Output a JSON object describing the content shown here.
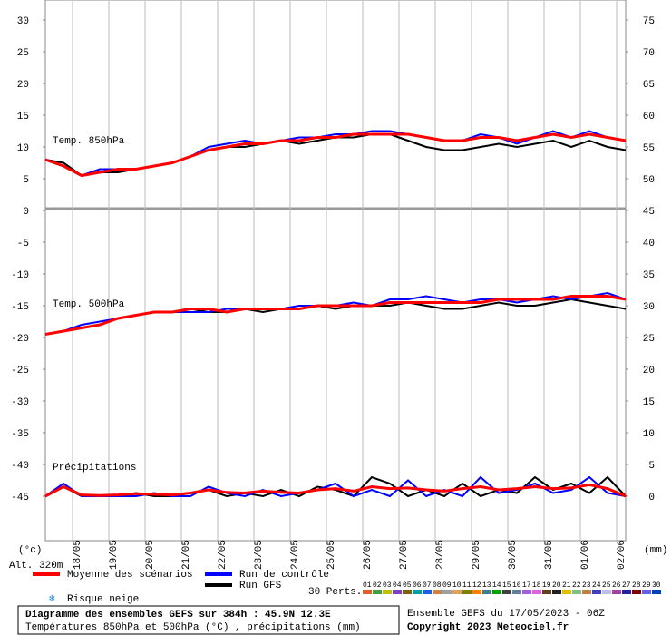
{
  "chart_data": {
    "type": "line",
    "y_unit": "(°c)",
    "y2_unit": "(mm)",
    "altitude": "Alt. 320m",
    "ylim": [
      -52,
      33
    ],
    "yticks": [
      30,
      25,
      20,
      15,
      10,
      5,
      0,
      -5,
      -10,
      -15,
      -20,
      -25,
      -30,
      -35,
      -40,
      -45
    ],
    "y2lim": [
      -7,
      78
    ],
    "y2ticks": [
      75,
      70,
      65,
      60,
      55,
      50,
      45,
      40,
      35,
      30,
      25,
      20,
      15,
      10,
      5,
      0
    ],
    "categories": [
      "18/05",
      "19/05",
      "20/05",
      "21/05",
      "22/05",
      "23/05",
      "24/05",
      "25/05",
      "26/05",
      "27/05",
      "28/05",
      "29/05",
      "30/05",
      "31/05",
      "01/06",
      "02/06"
    ],
    "legend": [
      {
        "name": "Moyenne des scénarios",
        "color": "#ff0000"
      },
      {
        "name": "Run de contrôle",
        "color": "#0000ff"
      },
      {
        "name": "Run GFS",
        "color": "#000000"
      }
    ],
    "snow_risk": "Risque neige",
    "perturbations_title": "30 Perts.",
    "perturbations": [
      {
        "label": "01",
        "color": "#e06030"
      },
      {
        "label": "02",
        "color": "#40a040"
      },
      {
        "label": "03",
        "color": "#c0c000"
      },
      {
        "label": "04",
        "color": "#8040c0"
      },
      {
        "label": "05",
        "color": "#806000"
      },
      {
        "label": "06",
        "color": "#00a0a0"
      },
      {
        "label": "07",
        "color": "#2060e0"
      },
      {
        "label": "08",
        "color": "#d08040"
      },
      {
        "label": "09",
        "color": "#a0a0a0"
      },
      {
        "label": "10",
        "color": "#e0a060"
      },
      {
        "label": "11",
        "color": "#808000"
      },
      {
        "label": "12",
        "color": "#ff8000"
      },
      {
        "label": "13",
        "color": "#408080"
      },
      {
        "label": "14",
        "color": "#00a000"
      },
      {
        "label": "15",
        "color": "#404040"
      },
      {
        "label": "16",
        "color": "#6080a0"
      },
      {
        "label": "17",
        "color": "#a060e0"
      },
      {
        "label": "18",
        "color": "#e060e0"
      },
      {
        "label": "19",
        "color": "#604020"
      },
      {
        "label": "20",
        "color": "#202020"
      },
      {
        "label": "21",
        "color": "#e0c000"
      },
      {
        "label": "22",
        "color": "#80c080"
      },
      {
        "label": "23",
        "color": "#c08040"
      },
      {
        "label": "24",
        "color": "#4040c0"
      },
      {
        "label": "25",
        "color": "#c0c0e0"
      },
      {
        "label": "26",
        "color": "#a040a0"
      },
      {
        "label": "27",
        "color": "#2020a0"
      },
      {
        "label": "28",
        "color": "#800000"
      },
      {
        "label": "29",
        "color": "#6060e0"
      },
      {
        "label": "30",
        "color": "#0040c0"
      }
    ],
    "panels": [
      {
        "label": "Temp. 850hPa",
        "axis": "y",
        "series": [
          {
            "color": "#000000",
            "values": [
              8,
              7.5,
              5.5,
              6,
              6,
              6.5,
              7,
              7.5,
              8.5,
              9.5,
              10,
              10,
              10.5,
              11,
              10.5,
              11,
              11.5,
              11.5,
              12,
              12,
              11,
              10,
              9.5,
              9.5,
              10,
              10.5,
              10,
              10.5,
              11,
              10,
              11,
              10,
              9.5
            ]
          },
          {
            "color": "#0000ff",
            "values": [
              8,
              7,
              5.5,
              6.5,
              6.5,
              6.5,
              7,
              7.5,
              8.5,
              10,
              10.5,
              11,
              10.5,
              11,
              11.5,
              11.5,
              12,
              12,
              12.5,
              12.5,
              12,
              11.5,
              11,
              11,
              12,
              11.5,
              10.5,
              11.5,
              12.5,
              11.5,
              12.5,
              11.5,
              11
            ]
          },
          {
            "color": "#ff0000",
            "values": [
              8,
              7,
              5.5,
              6,
              6.5,
              6.5,
              7,
              7.5,
              8.5,
              9.5,
              10,
              10.5,
              10.5,
              11,
              11,
              11.5,
              11.5,
              12,
              12,
              12,
              12,
              11.5,
              11,
              11,
              11.5,
              11.5,
              11,
              11.5,
              12,
              11.5,
              12,
              11.5,
              11
            ]
          }
        ]
      },
      {
        "label": "Temp. 500hPa",
        "axis": "y",
        "series": [
          {
            "color": "#000000",
            "values": [
              -19.5,
              -19,
              -18.5,
              -18,
              -17,
              -16.5,
              -16,
              -16,
              -15.5,
              -16,
              -16,
              -15.5,
              -16,
              -15.5,
              -15.5,
              -15,
              -15.5,
              -15,
              -15,
              -15,
              -14.5,
              -15,
              -15.5,
              -15.5,
              -15,
              -14.5,
              -15,
              -15,
              -14.5,
              -14,
              -14.5,
              -15,
              -15.5
            ]
          },
          {
            "color": "#0000ff",
            "values": [
              -19.5,
              -19,
              -18,
              -17.5,
              -17,
              -16.5,
              -16,
              -16,
              -16,
              -16,
              -15.5,
              -15.5,
              -15.5,
              -15.5,
              -15,
              -15,
              -15,
              -14.5,
              -15,
              -14,
              -14,
              -13.5,
              -14,
              -14.5,
              -14,
              -14,
              -14.5,
              -14,
              -13.5,
              -14,
              -13.5,
              -13,
              -14
            ]
          },
          {
            "color": "#ff0000",
            "values": [
              -19.5,
              -19,
              -18.5,
              -18,
              -17,
              -16.5,
              -16,
              -16,
              -15.5,
              -15.5,
              -16,
              -15.5,
              -15.5,
              -15.5,
              -15.5,
              -15,
              -15,
              -15,
              -15,
              -14.5,
              -14.5,
              -14.5,
              -14.5,
              -14.5,
              -14.5,
              -14,
              -14,
              -14,
              -14,
              -13.5,
              -13.5,
              -13.5,
              -14
            ]
          }
        ]
      },
      {
        "label": "Précipitations",
        "axis": "y2",
        "series": [
          {
            "color": "#000000",
            "values": [
              0,
              1.5,
              0,
              0,
              0,
              0.5,
              0,
              0,
              0.5,
              1,
              0,
              0.5,
              0,
              1,
              0,
              1.5,
              1,
              0,
              3,
              2,
              0,
              1,
              0,
              2,
              0,
              1,
              0.5,
              3,
              1,
              2,
              0.5,
              3,
              0
            ]
          },
          {
            "color": "#0000ff",
            "values": [
              0,
              2,
              0,
              0,
              0,
              0,
              0.5,
              0,
              0,
              1.5,
              0.5,
              0,
              1,
              0,
              0.5,
              1,
              2,
              0,
              1,
              0,
              2.5,
              0,
              1,
              0,
              3,
              0.5,
              1,
              2,
              0.5,
              1,
              3,
              0.5,
              0
            ]
          },
          {
            "color": "#ff0000",
            "values": [
              0,
              1.5,
              0.2,
              0.1,
              0.2,
              0.4,
              0.3,
              0.2,
              0.5,
              1,
              0.6,
              0.5,
              0.8,
              0.6,
              0.5,
              1,
              1.2,
              0.8,
              1.5,
              1.2,
              1.3,
              1,
              0.8,
              1.2,
              1.5,
              1,
              1.2,
              1.5,
              1.2,
              1.3,
              1.8,
              1.2,
              0
            ]
          }
        ]
      }
    ],
    "footer": {
      "title": "Diagramme des ensembles GEFS sur 384h : 45.9N 12.3E",
      "subtitle": "Températures 850hPa et 500hPa (°C) , précipitations (mm)",
      "run": "Ensemble GEFS du 17/05/2023 - 06Z",
      "copyright": "Copyright 2023 Meteociel.fr"
    }
  }
}
